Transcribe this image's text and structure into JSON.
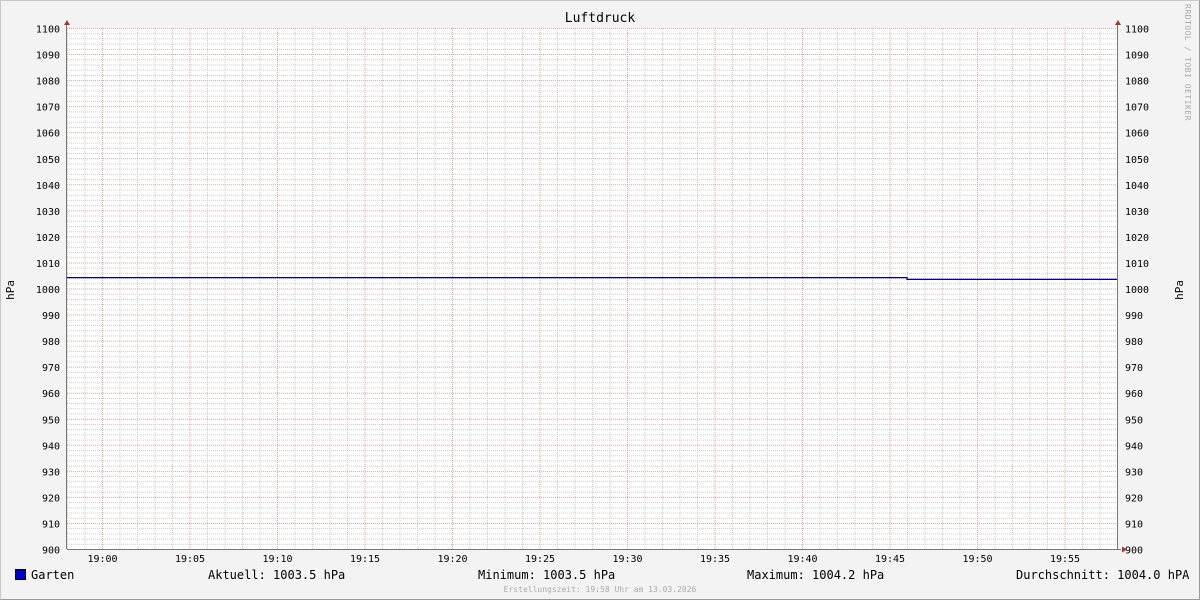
{
  "chart_data": {
    "type": "line",
    "title": "Luftdruck",
    "ylabel": "hPa",
    "ylabel_right": "hPa",
    "ylim": [
      900,
      1100
    ],
    "yticks": [
      900,
      910,
      920,
      930,
      940,
      950,
      960,
      970,
      980,
      990,
      1000,
      1010,
      1020,
      1030,
      1040,
      1050,
      1060,
      1070,
      1080,
      1090,
      1100
    ],
    "xlim": [
      "18:58",
      "19:58"
    ],
    "xticks": [
      "19:00",
      "19:05",
      "19:10",
      "19:15",
      "19:20",
      "19:25",
      "19:30",
      "19:35",
      "19:40",
      "19:45",
      "19:50",
      "19:55"
    ],
    "grid": true,
    "series": [
      {
        "name": "Garten",
        "color": "#0000aa",
        "x": [
          "18:58",
          "19:46",
          "19:46",
          "19:58"
        ],
        "values": [
          1004.2,
          1004.2,
          1003.5,
          1003.5
        ]
      }
    ],
    "legend": {
      "series": "Garten",
      "current": "Aktuell: 1003.5 hPa",
      "minimum": "Minimum: 1003.5 hPa",
      "maximum": "Maximum: 1004.2 hPa",
      "average": "Durchschnitt: 1004.0 hPA"
    },
    "watermark": "RRDTOOL / TOBI OETIKER",
    "footer": "Erstellungszeit: 19:58 Uhr am 13.03.2026"
  }
}
